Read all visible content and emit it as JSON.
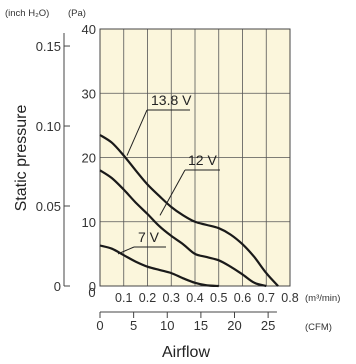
{
  "chart_data": {
    "type": "line",
    "title": "",
    "xlabel": "Airflow",
    "ylabel": "Static pressure",
    "ylabel_units_left": "(inch H₂O)",
    "ylabel_units_right": "(Pa)",
    "x_primary_unit": "(m³/min)",
    "x_secondary_unit": "(CFM)",
    "xlim": [
      0,
      0.8
    ],
    "ylim": [
      0,
      40
    ],
    "grid": true,
    "pa_ticks": [
      "0",
      "10",
      "20",
      "30",
      "40"
    ],
    "inch_ticks": [
      "0",
      "0.05",
      "0.10",
      "0.15"
    ],
    "inch_tick_values_pa": [
      0,
      12.45,
      24.9,
      37.35
    ],
    "m3_ticks": [
      "0",
      "0.1",
      "0.2",
      "0.3",
      "0.4",
      "0.5",
      "0.6",
      "0.7",
      "0.8"
    ],
    "cfm_ticks": [
      "0",
      "5",
      "10",
      "15",
      "20",
      "25"
    ],
    "cfm_tick_values_m3": [
      0,
      0.1416,
      0.2832,
      0.4248,
      0.5663,
      0.7079
    ],
    "series": [
      {
        "name": "13.8 V",
        "x": [
          0,
          0.05,
          0.1,
          0.15,
          0.2,
          0.25,
          0.3,
          0.35,
          0.4,
          0.45,
          0.5,
          0.55,
          0.6,
          0.65,
          0.7,
          0.75
        ],
        "y": [
          23.5,
          22.3,
          20.3,
          18.0,
          15.8,
          14.0,
          12.3,
          11.0,
          10.0,
          9.5,
          9.0,
          8.0,
          6.5,
          4.5,
          2.0,
          0
        ]
      },
      {
        "name": "12 V",
        "x": [
          0,
          0.05,
          0.1,
          0.15,
          0.2,
          0.25,
          0.3,
          0.35,
          0.4,
          0.45,
          0.5,
          0.55,
          0.6,
          0.65,
          0.7
        ],
        "y": [
          18.0,
          16.8,
          15.0,
          13.0,
          11.2,
          9.3,
          7.8,
          6.5,
          5.0,
          4.5,
          4.0,
          3.0,
          1.8,
          0.5,
          0
        ]
      },
      {
        "name": "7 V",
        "x": [
          0,
          0.05,
          0.1,
          0.15,
          0.2,
          0.25,
          0.3,
          0.35,
          0.4,
          0.45,
          0.5
        ],
        "y": [
          6.3,
          5.8,
          4.8,
          3.8,
          3.0,
          2.5,
          2.0,
          1.2,
          0.5,
          0.1,
          0
        ]
      }
    ]
  }
}
